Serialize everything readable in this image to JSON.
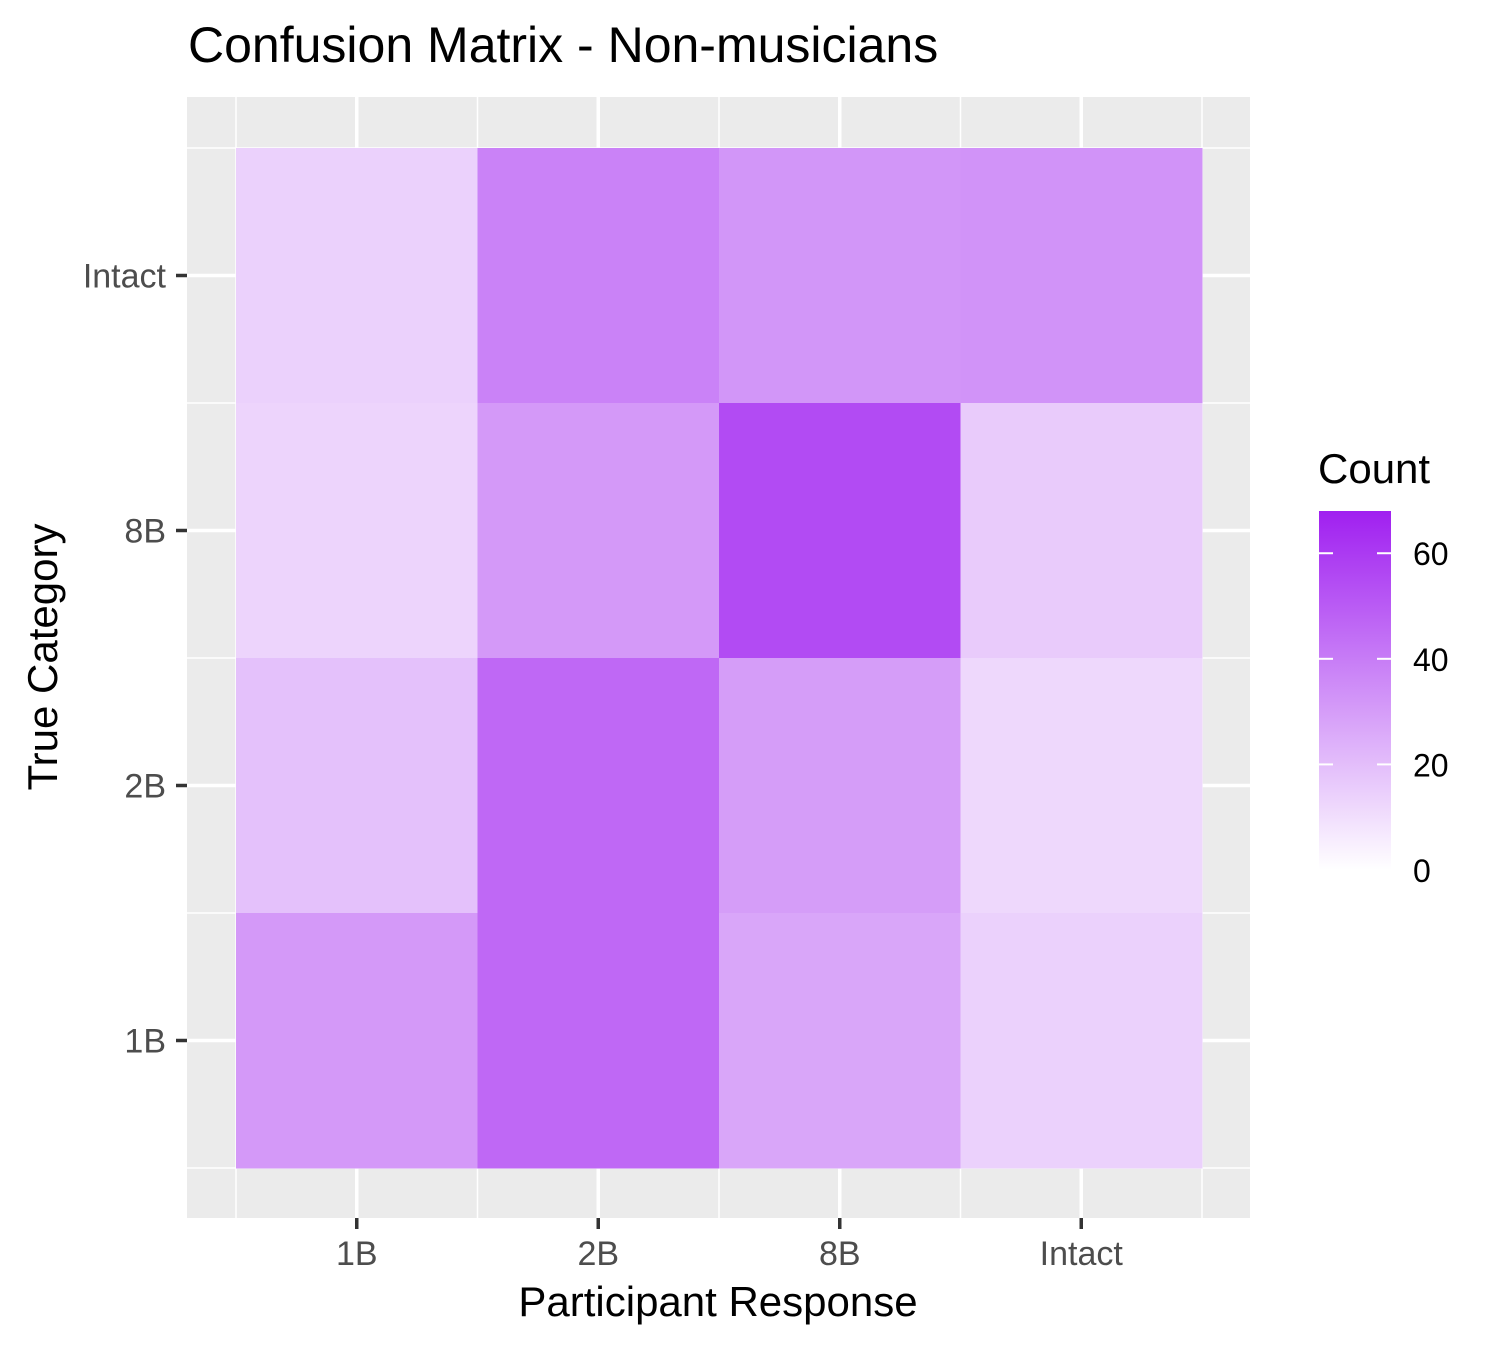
{
  "chart_data": {
    "type": "heatmap",
    "title": "Confusion Matrix - Non-musicians",
    "xlabel": "Participant Response",
    "ylabel": "True Category",
    "x_categories": [
      "1B",
      "2B",
      "8B",
      "Intact"
    ],
    "y_categories": [
      "1B",
      "2B",
      "8B",
      "Intact"
    ],
    "cells": [
      {
        "x": "1B",
        "y": "Intact",
        "value": 14
      },
      {
        "x": "2B",
        "y": "Intact",
        "value": 38
      },
      {
        "x": "8B",
        "y": "Intact",
        "value": 32
      },
      {
        "x": "Intact",
        "y": "Intact",
        "value": 33
      },
      {
        "x": "1B",
        "y": "8B",
        "value": 13
      },
      {
        "x": "2B",
        "y": "8B",
        "value": 31
      },
      {
        "x": "8B",
        "y": "8B",
        "value": 55
      },
      {
        "x": "Intact",
        "y": "8B",
        "value": 16
      },
      {
        "x": "1B",
        "y": "2B",
        "value": 19
      },
      {
        "x": "2B",
        "y": "2B",
        "value": 46
      },
      {
        "x": "8B",
        "y": "2B",
        "value": 30
      },
      {
        "x": "Intact",
        "y": "2B",
        "value": 12
      },
      {
        "x": "1B",
        "y": "1B",
        "value": 31
      },
      {
        "x": "2B",
        "y": "1B",
        "value": 46
      },
      {
        "x": "8B",
        "y": "1B",
        "value": 27
      },
      {
        "x": "Intact",
        "y": "1B",
        "value": 14
      }
    ],
    "legend": {
      "title": "Count",
      "ticks": [
        0,
        20,
        40,
        60
      ],
      "range": [
        0,
        68
      ],
      "position": "right",
      "low_color": "#ffffff",
      "high_color": "#a020f0"
    },
    "grid": true,
    "panel_background": "#ebebeb"
  }
}
